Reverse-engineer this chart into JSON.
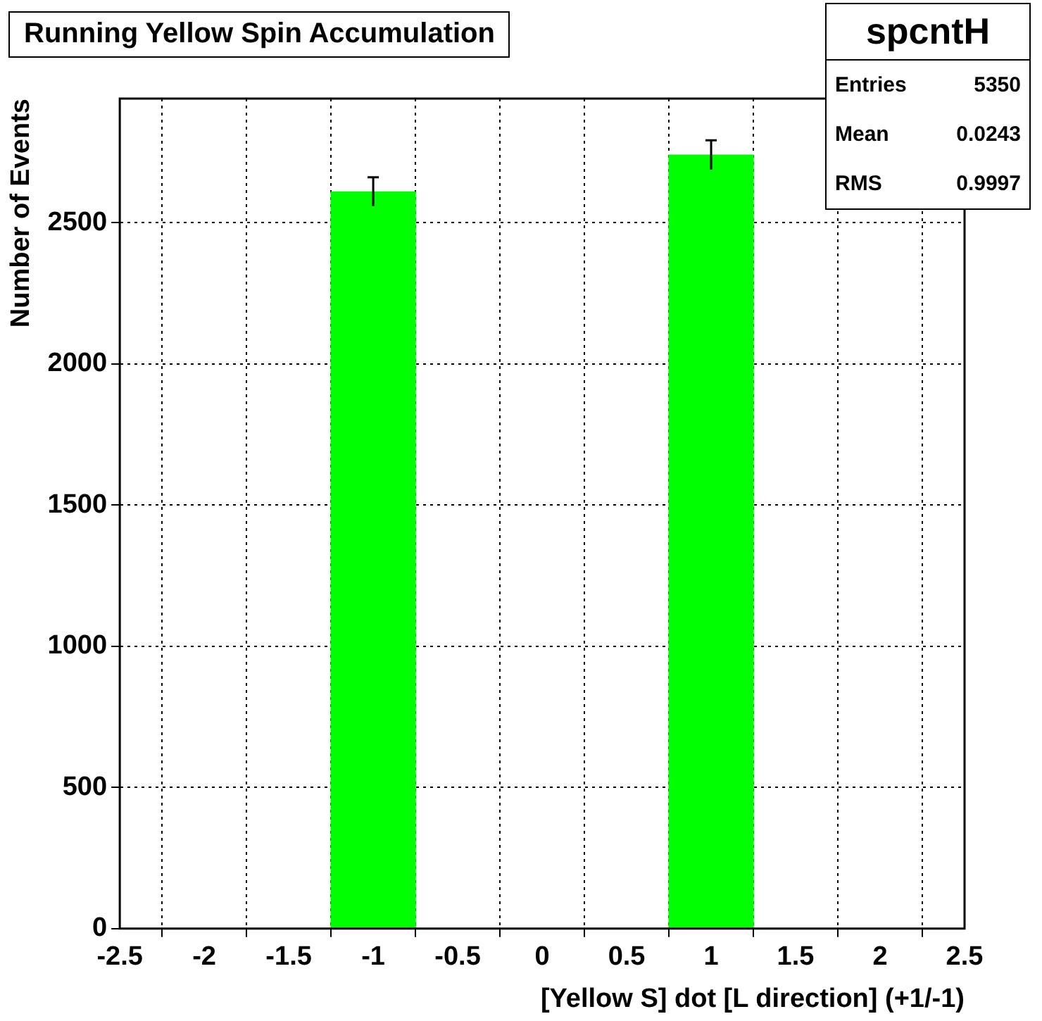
{
  "chart_data": {
    "type": "histogram",
    "title": "Running Yellow Spin Accumulation",
    "xlabel": "[Yellow S] dot [L direction] (+1/-1)",
    "ylabel": "Number of Events",
    "bins": [
      -2.5,
      -1.5,
      -0.5,
      0.5,
      1.5,
      2.5
    ],
    "values": [
      0,
      2610,
      0,
      2740,
      0
    ],
    "errors": [
      null,
      51,
      null,
      52,
      null
    ],
    "color": "#00ff00",
    "xlim": [
      -2.5,
      2.5
    ],
    "xticks": [
      -2.5,
      -2,
      -1.5,
      -1,
      -0.5,
      0,
      0.5,
      1,
      1.5,
      2,
      2.5
    ],
    "ylim": [
      0,
      2940
    ],
    "yticks": [
      0,
      500,
      1000,
      1500,
      2000,
      2500
    ],
    "grid": true,
    "legend": false,
    "annotations": [
      "spcntH",
      "Entries 5350",
      "Mean 0.0243",
      "RMS 0.9997"
    ]
  }
}
